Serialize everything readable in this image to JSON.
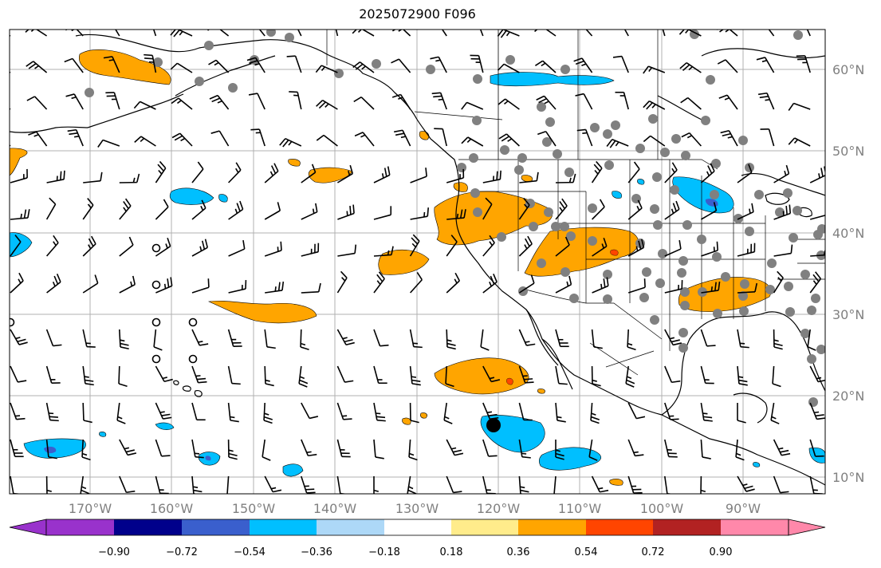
{
  "title": "2025072900 F096",
  "map": {
    "lat_labels": [
      {
        "lat": 60,
        "text": "60°N"
      },
      {
        "lat": 50,
        "text": "50°N"
      },
      {
        "lat": 40,
        "text": "40°N"
      },
      {
        "lat": 30,
        "text": "30°N"
      },
      {
        "lat": 20,
        "text": "20°N"
      },
      {
        "lat": 10,
        "text": "10°N"
      }
    ],
    "lon_labels": [
      {
        "lon": -170,
        "text": "170°W"
      },
      {
        "lon": -160,
        "text": "160°W"
      },
      {
        "lon": -150,
        "text": "150°W"
      },
      {
        "lon": -140,
        "text": "140°W"
      },
      {
        "lon": -130,
        "text": "130°W"
      },
      {
        "lon": -120,
        "text": "120°W"
      },
      {
        "lon": -110,
        "text": "110°W"
      },
      {
        "lon": -100,
        "text": "100°W"
      },
      {
        "lon": -90,
        "text": "90°W"
      }
    ],
    "extent": {
      "lon_min": -180,
      "lon_max": -80,
      "lat_min": 8,
      "lat_max": 64
    },
    "grid": true,
    "colors": {
      "land_outline": "#000000",
      "grid": "#b0b0b0",
      "station_dot": "#808080"
    }
  },
  "colorbar": {
    "colors": [
      "#9932cc",
      "#00008b",
      "#3a5fcd",
      "#00bfff",
      "#add8f7",
      "#ffffff",
      "#ffec8b",
      "#ffa500",
      "#ff4500",
      "#b22222",
      "#ff88aa"
    ],
    "tick_labels": [
      "−0.90",
      "−0.72",
      "−0.54",
      "−0.36",
      "−0.18",
      "0.18",
      "0.36",
      "0.54",
      "0.72",
      "0.90"
    ],
    "extend": "both"
  }
}
